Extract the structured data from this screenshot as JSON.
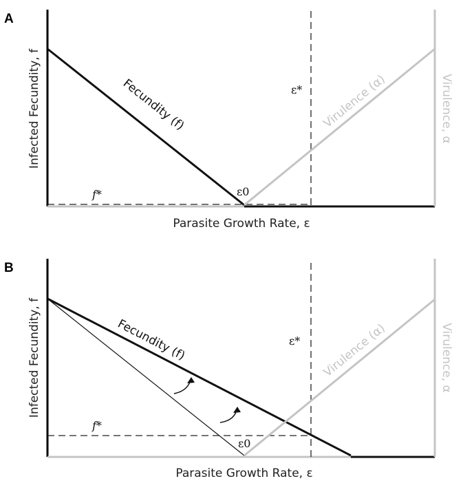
{
  "panels": [
    {
      "letter": "A",
      "y_axis_label": "Infected Fecundity, f",
      "x_axis_label": "Parasite Growth Rate, ε",
      "right_axis_label": "Virulence, α",
      "fecundity_label": "Fecundity (f)",
      "virulence_label": "Virulence (α)",
      "f_star": "f*",
      "eps_star": "ε*",
      "eps_zero": "ε0"
    },
    {
      "letter": "B",
      "y_axis_label": "Infected Fecundity, f",
      "x_axis_label": "Parasite Growth Rate, ε",
      "right_axis_label": "Virulence, α",
      "fecundity_label": "Fecundity (f)",
      "virulence_label": "Virulence (α)",
      "f_star": "f*",
      "eps_star": "ε*",
      "eps_zero": "ε0"
    }
  ],
  "colors": {
    "fecundity": "#111111",
    "virulence": "#c4c4c4",
    "dashed": "#222222"
  }
}
